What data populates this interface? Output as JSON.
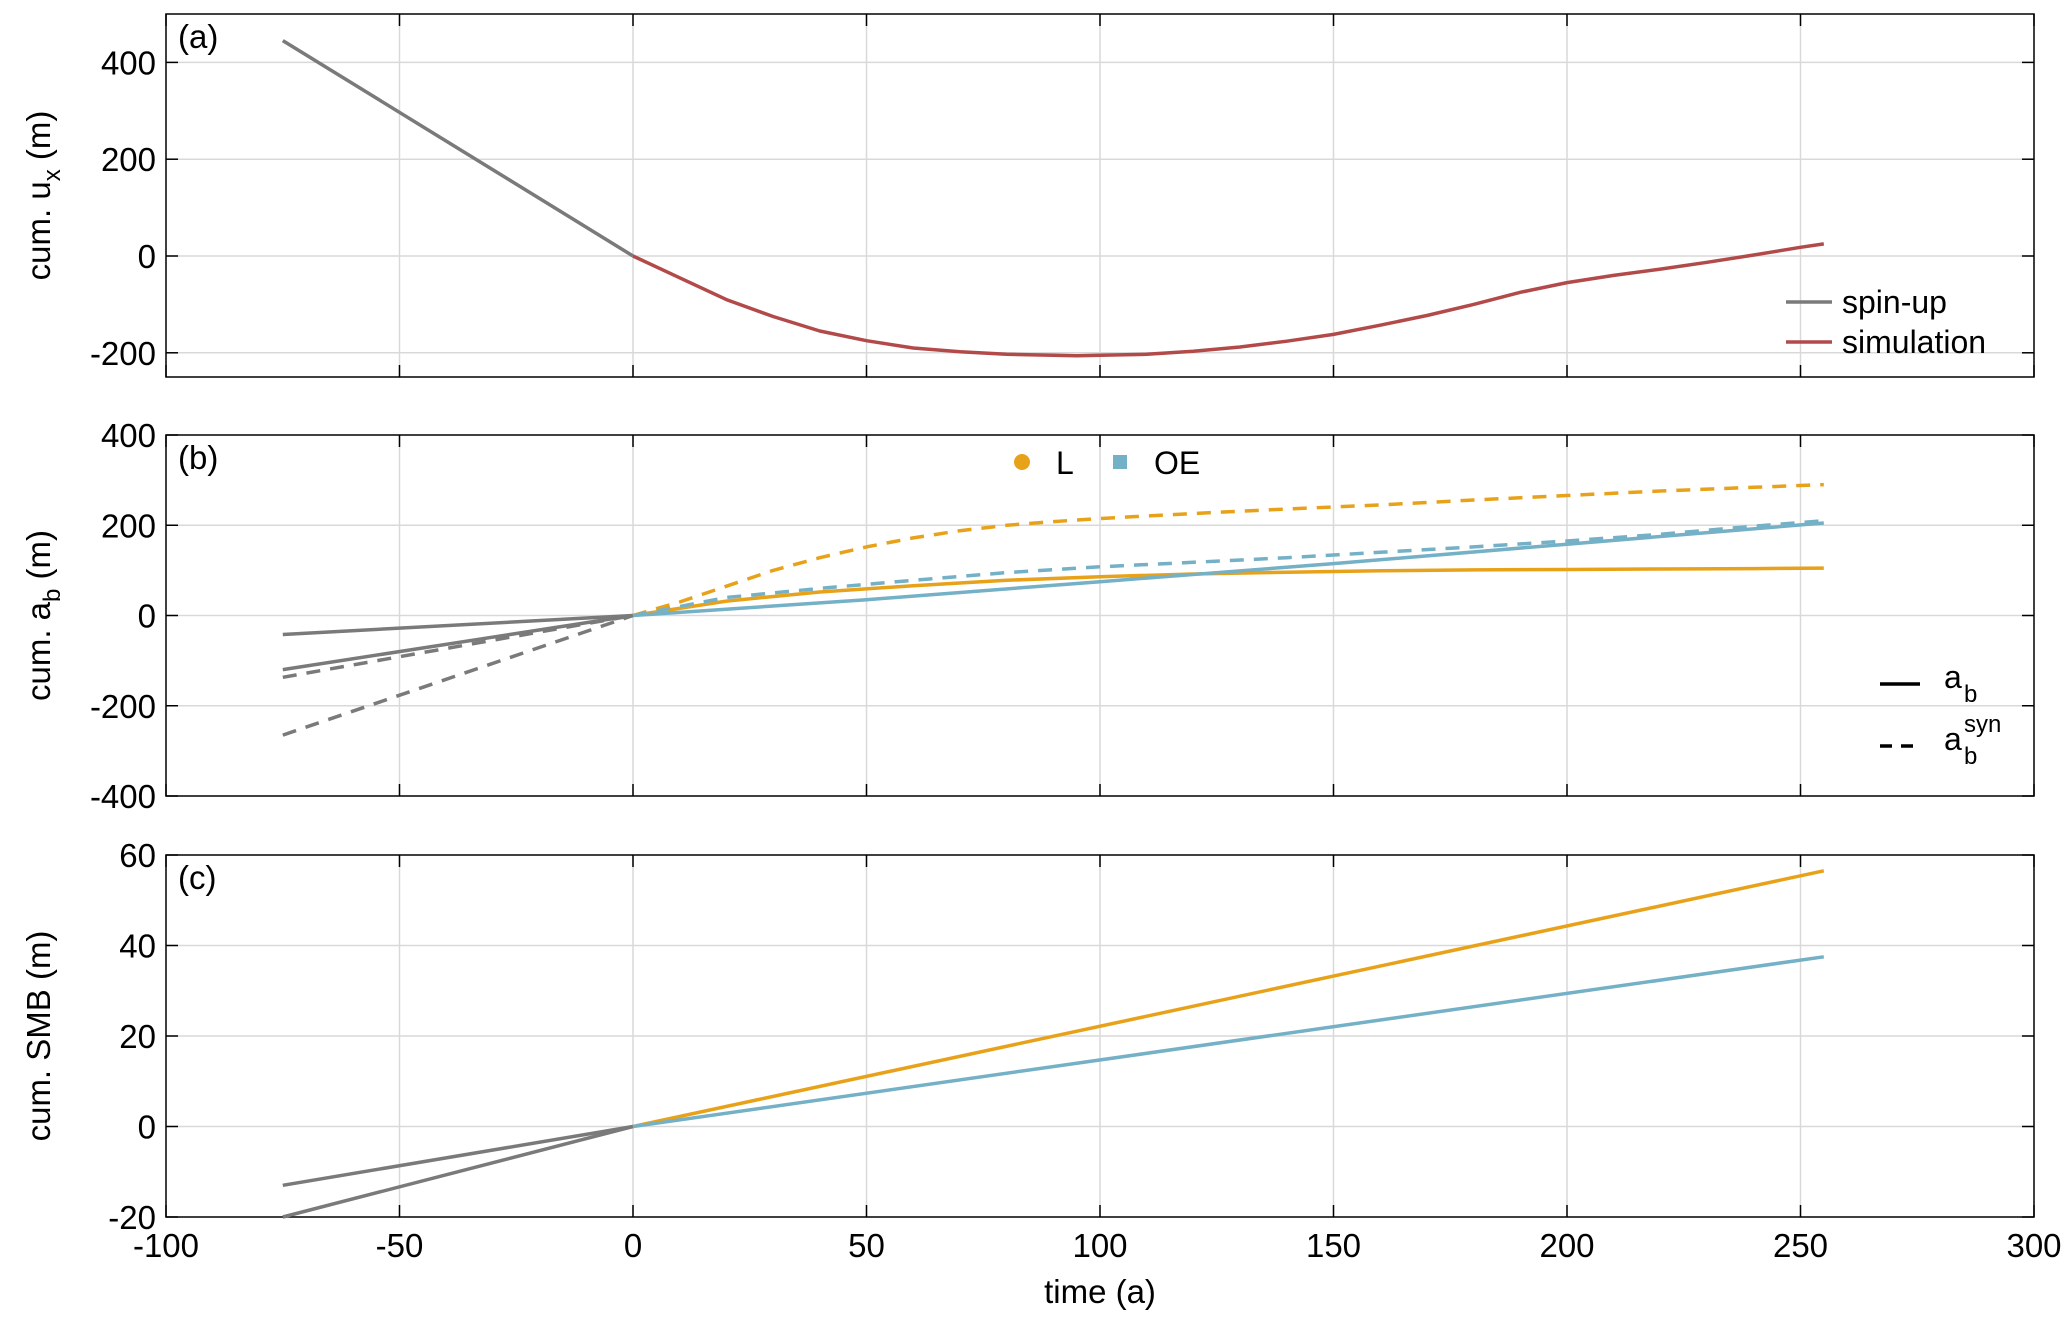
{
  "x_axis": {
    "label": "time (a)",
    "ticks": [
      -100,
      -50,
      0,
      50,
      100,
      150,
      200,
      250,
      300
    ],
    "tick_labels": [
      "-100",
      "-50",
      "0",
      "50",
      "100",
      "150",
      "200",
      "250",
      "300"
    ]
  },
  "colors": {
    "spinup": "#7a7a7a",
    "simulation": "#b34a4a",
    "L": "#e8a21a",
    "OE": "#74b0c6",
    "grid": "#d9d9d9",
    "axis": "#000000"
  },
  "panels": [
    {
      "id": "a",
      "label": "(a)",
      "ylabel_main": "cum. u",
      "ylabel_sub": "x",
      "ylabel_sup": "",
      "ylabel_unit": " (m)",
      "ylim": [
        -250,
        500
      ],
      "yticks": [
        -200,
        0,
        200,
        400
      ],
      "ytick_labels": [
        "-200",
        "0",
        "200",
        "400"
      ]
    },
    {
      "id": "b",
      "label": "(b)",
      "ylabel_main": "cum. a",
      "ylabel_sub": "b",
      "ylabel_sup": "",
      "ylabel_unit": " (m)",
      "ylim": [
        -400,
        400
      ],
      "yticks": [
        -400,
        -200,
        0,
        200,
        400
      ],
      "ytick_labels": [
        "-400",
        "-200",
        "0",
        "200",
        "400"
      ]
    },
    {
      "id": "c",
      "label": "(c)",
      "ylabel_main": "cum. SMB (m)",
      "ylabel_sub": "",
      "ylabel_sup": "",
      "ylabel_unit": "",
      "ylim": [
        -20,
        60
      ],
      "yticks": [
        -20,
        0,
        20,
        40,
        60
      ],
      "ytick_labels": [
        "-20",
        "0",
        "20",
        "40",
        "60"
      ]
    }
  ],
  "legends": {
    "a": [
      {
        "label": "spin-up",
        "color_key": "spinup",
        "style": "solid"
      },
      {
        "label": "simulation",
        "color_key": "simulation",
        "style": "solid"
      }
    ],
    "b_markers": [
      {
        "label": "L",
        "color_key": "L",
        "marker": "circle"
      },
      {
        "label": "OE",
        "color_key": "OE",
        "marker": "square"
      }
    ],
    "b_lines": [
      {
        "main": "a",
        "sub": "b",
        "sup": "",
        "style": "solid"
      },
      {
        "main": "a",
        "sub": "b",
        "sup": "syn",
        "style": "dashed"
      }
    ]
  },
  "chart_data": [
    {
      "type": "line",
      "panel": "a",
      "xlabel": "",
      "ylabel": "cum. u_x (m)",
      "xlim": [
        -100,
        300
      ],
      "ylim": [
        -250,
        500
      ],
      "grid": true,
      "legend_placement": "bottom-right",
      "series": [
        {
          "name": "spin-up",
          "color_key": "spinup",
          "style": "solid",
          "x": [
            -75,
            0
          ],
          "y": [
            445,
            0
          ]
        },
        {
          "name": "simulation",
          "color_key": "simulation",
          "style": "solid",
          "x": [
            0,
            10,
            20,
            30,
            40,
            50,
            60,
            70,
            80,
            90,
            95,
            100,
            110,
            120,
            130,
            140,
            150,
            160,
            170,
            180,
            190,
            200,
            210,
            220,
            230,
            240,
            250,
            255
          ],
          "y": [
            0,
            -45,
            -90,
            -125,
            -155,
            -175,
            -190,
            -198,
            -203,
            -205,
            -206,
            -205,
            -203,
            -197,
            -188,
            -176,
            -162,
            -143,
            -123,
            -100,
            -75,
            -55,
            -40,
            -27,
            -13,
            2,
            18,
            25
          ]
        }
      ]
    },
    {
      "type": "line",
      "panel": "b",
      "xlabel": "",
      "ylabel": "cum. a_b (m)",
      "xlim": [
        -100,
        300
      ],
      "ylim": [
        -400,
        400
      ],
      "grid": true,
      "legend_placement": "top-center and right",
      "series": [
        {
          "color_key": "spinup",
          "style": "solid",
          "x": [
            -75,
            0
          ],
          "y": [
            -42,
            0
          ]
        },
        {
          "color_key": "spinup",
          "style": "solid",
          "x": [
            -75,
            0
          ],
          "y": [
            -120,
            0
          ]
        },
        {
          "color_key": "spinup",
          "style": "dashed",
          "x": [
            -75,
            0
          ],
          "y": [
            -137,
            0
          ]
        },
        {
          "color_key": "spinup",
          "style": "dashed",
          "x": [
            -75,
            0
          ],
          "y": [
            -265,
            0
          ]
        },
        {
          "name": "L",
          "color_key": "L",
          "style": "solid",
          "x": [
            0,
            20,
            40,
            60,
            80,
            100,
            120,
            140,
            160,
            180,
            200,
            220,
            240,
            255
          ],
          "y": [
            0,
            32,
            52,
            66,
            78,
            86,
            92,
            96,
            99,
            101,
            102,
            103,
            104,
            105
          ]
        },
        {
          "name": "OE",
          "color_key": "OE",
          "style": "solid",
          "x": [
            0,
            50,
            100,
            150,
            200,
            255
          ],
          "y": [
            0,
            35,
            75,
            115,
            158,
            205
          ]
        },
        {
          "name": "L",
          "color_key": "L",
          "style": "dashed",
          "x": [
            0,
            10,
            20,
            30,
            40,
            50,
            60,
            70,
            80,
            90,
            100,
            120,
            140,
            160,
            180,
            200,
            220,
            240,
            255
          ],
          "y": [
            0,
            30,
            65,
            100,
            128,
            152,
            172,
            188,
            200,
            208,
            215,
            226,
            236,
            245,
            256,
            266,
            276,
            284,
            290
          ]
        },
        {
          "name": "OE",
          "color_key": "OE",
          "style": "dashed",
          "x": [
            0,
            20,
            40,
            60,
            80,
            100,
            120,
            140,
            160,
            180,
            200,
            220,
            240,
            255
          ],
          "y": [
            0,
            40,
            60,
            78,
            95,
            108,
            118,
            128,
            140,
            152,
            165,
            180,
            198,
            210
          ]
        }
      ]
    },
    {
      "type": "line",
      "panel": "c",
      "xlabel": "time (a)",
      "ylabel": "cum. SMB (m)",
      "xlim": [
        -100,
        300
      ],
      "ylim": [
        -20,
        60
      ],
      "grid": true,
      "series": [
        {
          "color_key": "spinup",
          "style": "solid",
          "x": [
            -75,
            0
          ],
          "y": [
            -13,
            0
          ]
        },
        {
          "color_key": "spinup",
          "style": "solid",
          "x": [
            -75,
            0
          ],
          "y": [
            -20,
            0
          ]
        },
        {
          "name": "L",
          "color_key": "L",
          "style": "solid",
          "x": [
            0,
            255
          ],
          "y": [
            0,
            56.5
          ]
        },
        {
          "name": "OE",
          "color_key": "OE",
          "style": "solid",
          "x": [
            0,
            255
          ],
          "y": [
            0,
            37.5
          ]
        }
      ]
    }
  ]
}
